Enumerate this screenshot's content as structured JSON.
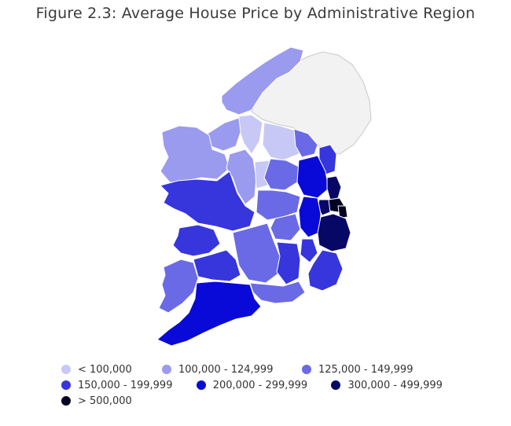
{
  "title": "Figure 2.3: Average House Price by Administrative Region",
  "map_colors": {
    "northern_ireland": "#f2f2f2",
    "northern_ireland_border": "#c8c8c8",
    "region_border": "#ffffff"
  },
  "legend": [
    {
      "label": "< 100,000",
      "color": "#c8c8f6"
    },
    {
      "label": "100,000 - 124,999",
      "color": "#9a9aee"
    },
    {
      "label": "125,000 - 149,999",
      "color": "#6a6ae6"
    },
    {
      "label": "150,000 - 199,999",
      "color": "#3636dc"
    },
    {
      "label": "200,000 - 299,999",
      "color": "#0a0ad8"
    },
    {
      "label": "300,000 - 499,999",
      "color": "#070766"
    },
    {
      "label": "> 500,000",
      "color": "#030321"
    }
  ]
}
